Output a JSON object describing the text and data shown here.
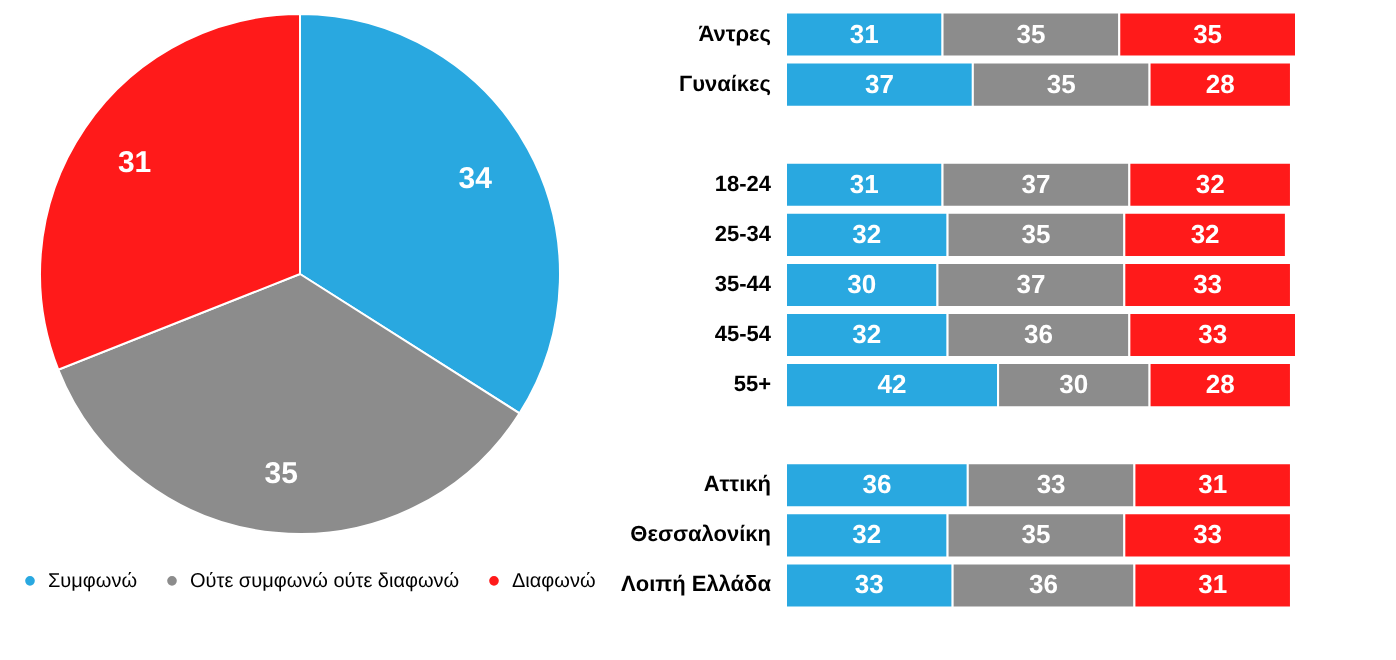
{
  "chart_data": [
    {
      "type": "pie",
      "categories": [
        "Συμφωνώ",
        "Ούτε συμφωνώ ούτε διαφωνώ",
        "Διαφωνώ"
      ],
      "values": [
        34,
        35,
        31
      ],
      "colors": [
        "#29a8e0",
        "#8c8c8c",
        "#ff1a1a"
      ],
      "data_labels": true,
      "legend": "bottom"
    },
    {
      "type": "bar",
      "orientation": "horizontal",
      "stacked": true,
      "data_labels": true,
      "categories": [
        "Άντρες",
        "Γυναίκες",
        null,
        "18-24",
        "25-34",
        "35-44",
        "45-54",
        "55+",
        null,
        "Αττική",
        "Θεσσαλονίκη",
        "Λοιπή Ελλάδα"
      ],
      "series": [
        {
          "color": "#29a8e0",
          "values": [
            31,
            37,
            null,
            31,
            32,
            30,
            32,
            42,
            null,
            36,
            32,
            33
          ]
        },
        {
          "color": "#8c8c8c",
          "values": [
            35,
            35,
            null,
            37,
            35,
            37,
            36,
            30,
            null,
            33,
            35,
            36
          ]
        },
        {
          "color": "#ff1a1a",
          "values": [
            35,
            28,
            null,
            32,
            32,
            33,
            33,
            28,
            null,
            31,
            33,
            31
          ]
        }
      ]
    }
  ]
}
